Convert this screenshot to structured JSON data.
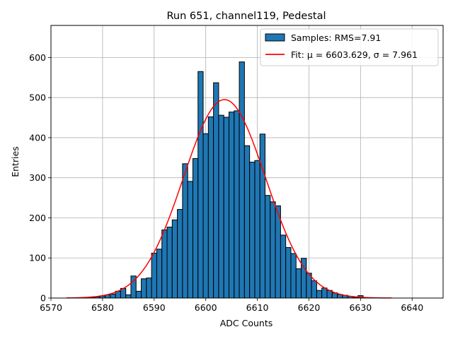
{
  "chart_data": {
    "type": "bar",
    "title": "Run 651, channel119, Pedestal",
    "xlabel": "ADC Counts",
    "ylabel": "Entries",
    "xlim": [
      6570,
      6646
    ],
    "ylim": [
      0,
      680
    ],
    "xticks": [
      6570,
      6580,
      6590,
      6600,
      6610,
      6620,
      6630,
      6640
    ],
    "yticks": [
      0,
      100,
      200,
      300,
      400,
      500,
      600
    ],
    "grid": true,
    "legend_position": "top-right",
    "series": [
      {
        "name": "Samples: RMS=7.91",
        "kind": "histogram",
        "color": "#1f77b4",
        "edge_color": "#000000",
        "bin_width": 1,
        "x": [
          6577,
          6578,
          6579,
          6580,
          6581,
          6582,
          6583,
          6584,
          6585,
          6586,
          6587,
          6588,
          6589,
          6590,
          6591,
          6592,
          6593,
          6594,
          6595,
          6596,
          6597,
          6598,
          6599,
          6600,
          6601,
          6602,
          6603,
          6604,
          6605,
          6606,
          6607,
          6608,
          6609,
          6610,
          6611,
          6612,
          6613,
          6614,
          6615,
          6616,
          6617,
          6618,
          6619,
          6620,
          6621,
          6622,
          6623,
          6624,
          6625,
          6626,
          6627,
          6628,
          6629,
          6630
        ],
        "values": [
          1,
          2,
          3,
          5,
          8,
          10,
          17,
          24,
          8,
          55,
          17,
          48,
          50,
          112,
          122,
          170,
          177,
          195,
          221,
          335,
          291,
          348,
          565,
          410,
          452,
          537,
          456,
          451,
          464,
          467,
          589,
          380,
          339,
          343,
          409,
          256,
          240,
          230,
          157,
          126,
          111,
          73,
          99,
          62,
          43,
          19,
          25,
          19,
          13,
          9,
          7,
          4,
          2,
          6
        ]
      },
      {
        "name": "Fit: μ = 6603.629, σ = 7.961",
        "kind": "gaussian",
        "color": "#ff0000",
        "mu": 6603.629,
        "sigma": 7.961,
        "amplitude": 495,
        "x_range": [
          6573,
          6636
        ]
      }
    ]
  }
}
